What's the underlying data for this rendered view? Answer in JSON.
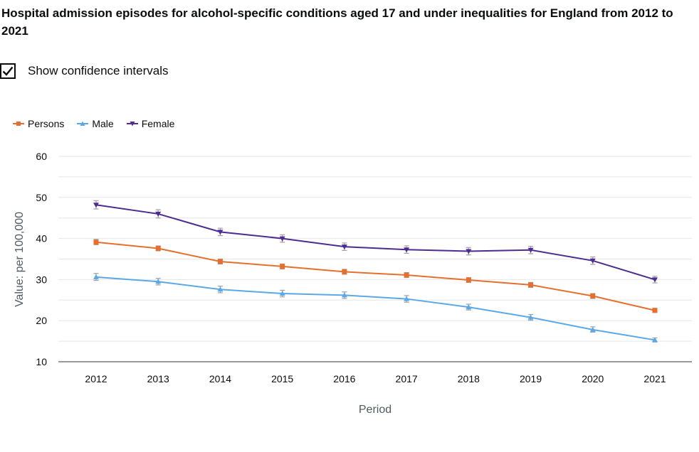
{
  "title": "Hospital admission episodes for alcohol-specific conditions aged 17 and under inequalities for England from 2012 to 2021",
  "ci_toggle": {
    "label": "Show confidence intervals",
    "checked": true
  },
  "chart_data": {
    "type": "line",
    "title": "",
    "xlabel": "Period",
    "ylabel": "Value: per 100,000",
    "ylim": [
      10,
      60
    ],
    "yticks": [
      10,
      20,
      30,
      40,
      50,
      60
    ],
    "x": [
      "2012",
      "2013",
      "2014",
      "2015",
      "2016",
      "2017",
      "2018",
      "2019",
      "2020",
      "2021"
    ],
    "legend_position": "top-left",
    "grid": true,
    "series": [
      {
        "name": "Persons",
        "color": "#e76f2e",
        "marker": "square",
        "values": [
          39.1,
          37.6,
          34.4,
          33.2,
          31.9,
          31.1,
          29.9,
          28.7,
          26.0,
          22.5
        ],
        "ci_lower": [
          38.5,
          37.0,
          33.8,
          32.6,
          31.3,
          30.5,
          29.3,
          28.1,
          25.4,
          22.0
        ],
        "ci_upper": [
          39.8,
          38.2,
          35.0,
          33.8,
          32.5,
          31.7,
          30.5,
          29.3,
          26.6,
          23.0
        ]
      },
      {
        "name": "Male",
        "color": "#5ba8e8",
        "marker": "triangle-up",
        "values": [
          30.6,
          29.5,
          27.6,
          26.6,
          26.2,
          25.3,
          23.3,
          20.8,
          17.8,
          15.3
        ],
        "ci_lower": [
          29.8,
          28.7,
          26.8,
          25.8,
          25.4,
          24.5,
          22.6,
          20.1,
          17.2,
          14.8
        ],
        "ci_upper": [
          31.5,
          30.3,
          28.4,
          27.4,
          27.0,
          26.1,
          24.0,
          21.5,
          18.5,
          15.8
        ]
      },
      {
        "name": "Female",
        "color": "#4c2c92",
        "marker": "triangle-down",
        "values": [
          48.2,
          46.0,
          41.6,
          40.0,
          38.0,
          37.3,
          36.9,
          37.2,
          34.6,
          30.0
        ],
        "ci_lower": [
          47.2,
          45.0,
          40.7,
          39.1,
          37.1,
          36.4,
          36.0,
          36.3,
          33.7,
          29.2
        ],
        "ci_upper": [
          49.2,
          47.0,
          42.5,
          40.9,
          38.9,
          38.2,
          37.8,
          38.1,
          35.5,
          30.8
        ]
      }
    ]
  }
}
